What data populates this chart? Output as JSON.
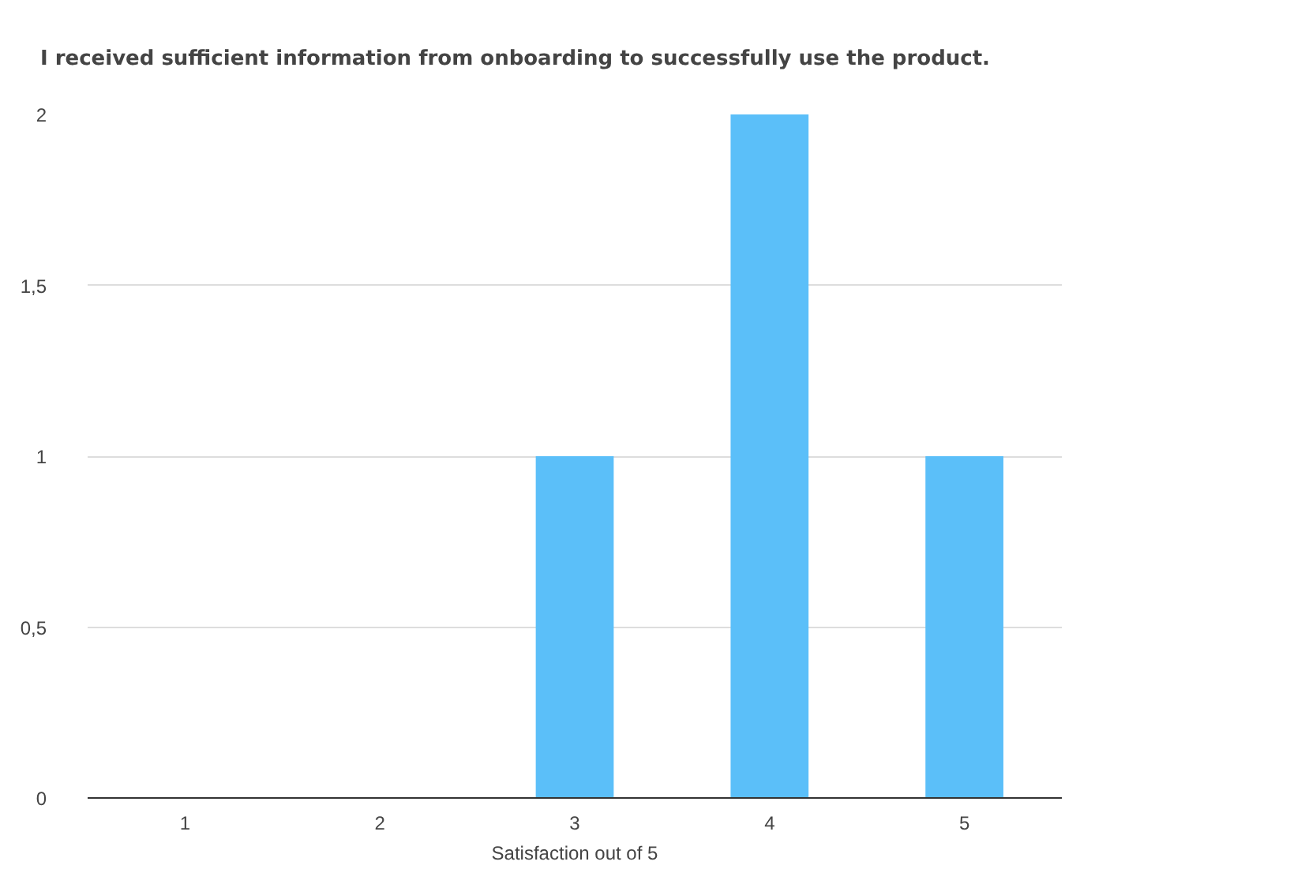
{
  "chart_data": {
    "type": "bar",
    "title": "I received sufficient information from onboarding to successfully use the product.",
    "xlabel": "Satisfaction out of 5",
    "categories": [
      "1",
      "2",
      "3",
      "4",
      "5"
    ],
    "values": [
      0,
      0,
      1,
      2,
      1
    ],
    "color": "#5bbff9",
    "ylim": [
      0,
      2
    ],
    "yticks": [
      0,
      {
        "value": 0.5,
        "label": "0,5"
      },
      1,
      {
        "value": 1.5,
        "label": "1,5"
      },
      2
    ],
    "grid": "y"
  }
}
